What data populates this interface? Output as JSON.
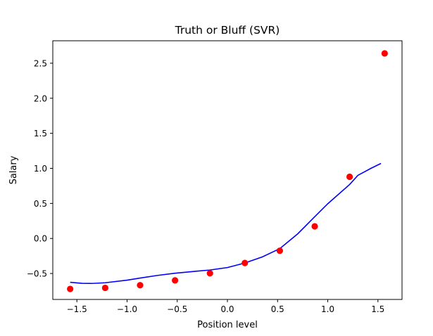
{
  "chart_data": {
    "type": "scatter",
    "title": "Truth or Bluff (SVR)",
    "xlabel": "Position level",
    "ylabel": "Salary",
    "xlim": [
      -1.74,
      1.74
    ],
    "ylim": [
      -0.87,
      2.82
    ],
    "xticks": [
      -1.5,
      -1.0,
      -0.5,
      0.0,
      0.5,
      1.0,
      1.5
    ],
    "xtick_labels": [
      "−1.5",
      "−1.0",
      "−0.5",
      "0.0",
      "0.5",
      "1.0",
      "1.5"
    ],
    "yticks": [
      -0.5,
      0.0,
      0.5,
      1.0,
      1.5,
      2.0,
      2.5
    ],
    "ytick_labels": [
      "−0.5",
      "0.0",
      "0.5",
      "1.0",
      "1.5",
      "2.0",
      "2.5"
    ],
    "grid": false,
    "series": [
      {
        "kind": "scatter",
        "color": "#ff0000",
        "x": [
          -1.567,
          -1.218,
          -0.87,
          -0.522,
          -0.174,
          0.174,
          0.522,
          0.87,
          1.218,
          1.567
        ],
        "y": [
          -0.72,
          -0.705,
          -0.667,
          -0.598,
          -0.497,
          -0.35,
          -0.175,
          0.173,
          0.88,
          2.64
        ]
      },
      {
        "kind": "line",
        "color": "#0000ff",
        "x": [
          -1.567,
          -1.45,
          -1.35,
          -1.218,
          -1.0,
          -0.87,
          -0.7,
          -0.522,
          -0.3,
          -0.174,
          0.0,
          0.174,
          0.35,
          0.522,
          0.7,
          0.87,
          1.0,
          1.218,
          1.3,
          1.43,
          1.53
        ],
        "y": [
          -0.625,
          -0.64,
          -0.642,
          -0.632,
          -0.595,
          -0.565,
          -0.528,
          -0.496,
          -0.466,
          -0.45,
          -0.415,
          -0.35,
          -0.262,
          -0.145,
          0.065,
          0.31,
          0.495,
          0.77,
          0.9,
          1.0,
          1.07
        ]
      }
    ]
  }
}
